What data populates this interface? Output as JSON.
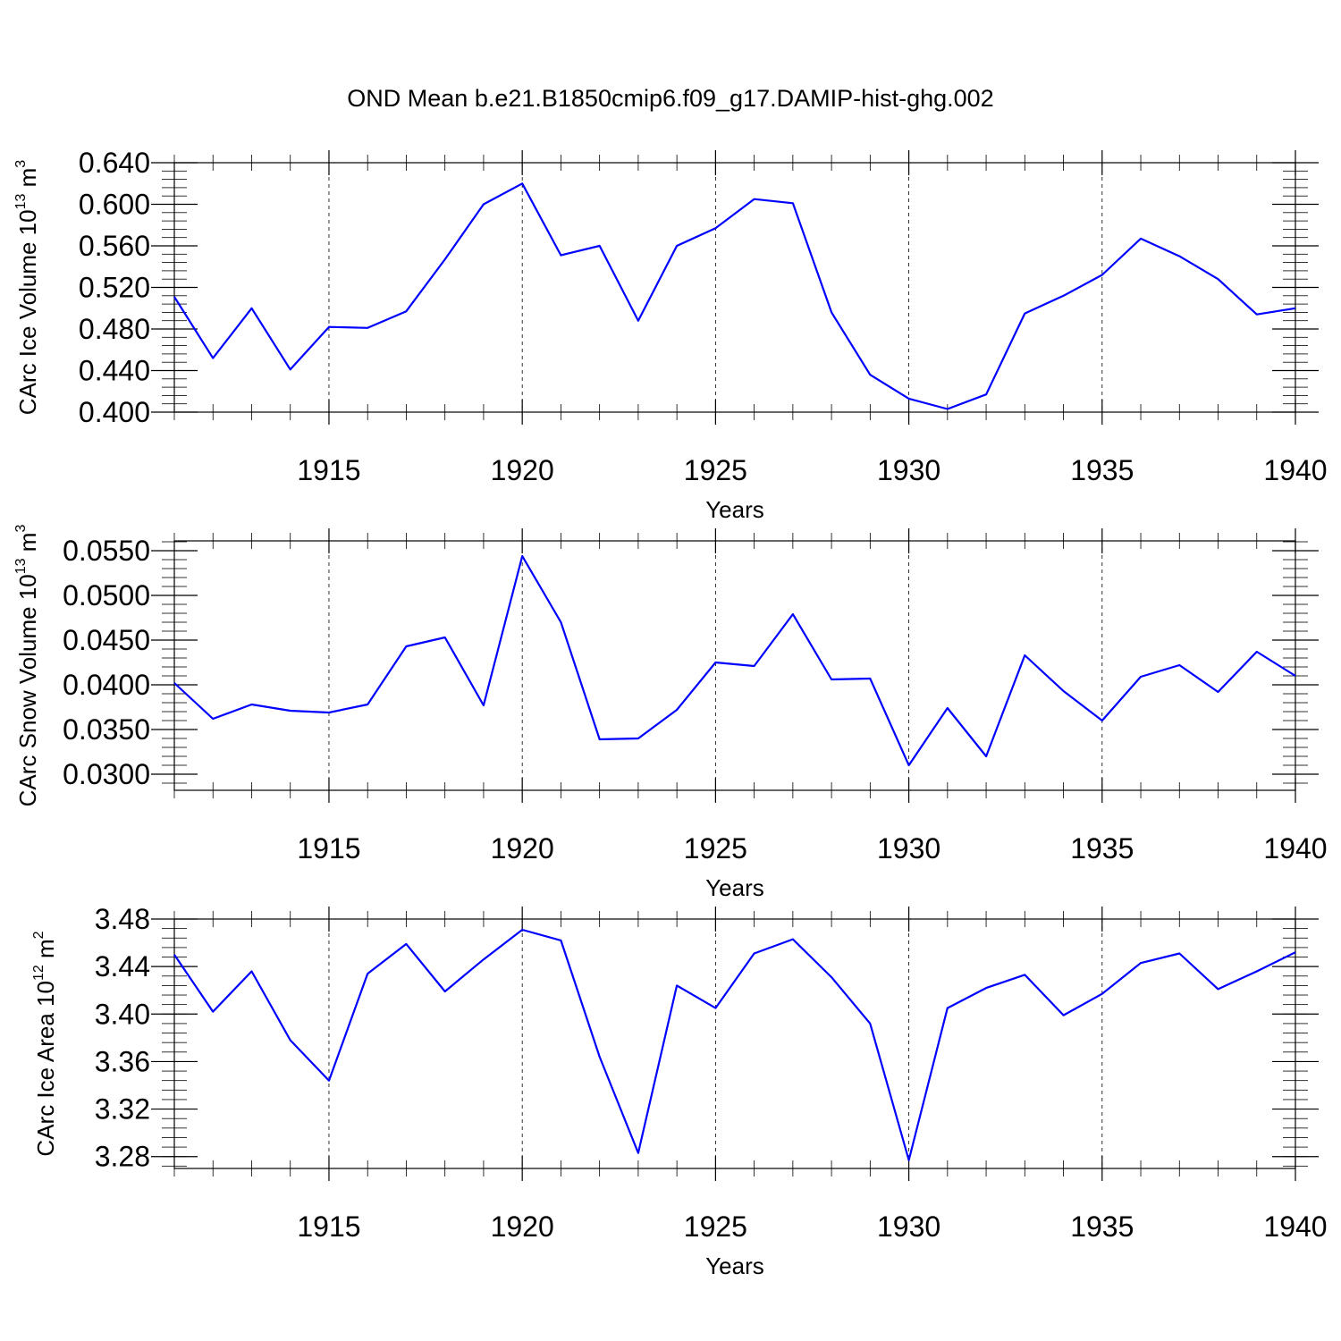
{
  "figure_title": "OND Mean b.e21.B1850cmip6.f09_g17.DAMIP-hist-ghg.002",
  "colors": {
    "line": "#0000ff",
    "axis": "#000000",
    "background": "#ffffff"
  },
  "chart_data": [
    {
      "type": "line",
      "ylabel_main": "CArc Ice Volume 10",
      "ylabel_sup": "13",
      "ylabel_unit": "m",
      "ylabel_unit_sup": "3",
      "xlabel": "Years",
      "xlim": [
        1911,
        1940
      ],
      "ylim": [
        0.4,
        0.64
      ],
      "yticks": [
        "0.400",
        "0.440",
        "0.480",
        "0.520",
        "0.560",
        "0.600",
        "0.640"
      ],
      "xticks": [
        "1915",
        "1920",
        "1925",
        "1930",
        "1935",
        "1940"
      ],
      "grid": "vertical dashed at major x ticks",
      "x": [
        1911,
        1912,
        1913,
        1914,
        1915,
        1916,
        1917,
        1918,
        1919,
        1920,
        1921,
        1922,
        1923,
        1924,
        1925,
        1926,
        1927,
        1928,
        1929,
        1930,
        1931,
        1932,
        1933,
        1934,
        1935,
        1936,
        1937,
        1938,
        1939,
        1940
      ],
      "values": [
        0.511,
        0.452,
        0.5,
        0.441,
        0.482,
        0.481,
        0.497,
        0.547,
        0.6,
        0.62,
        0.551,
        0.56,
        0.488,
        0.56,
        0.577,
        0.605,
        0.601,
        0.496,
        0.436,
        0.413,
        0.403,
        0.417,
        0.495,
        0.512,
        0.532,
        0.567,
        0.55,
        0.528,
        0.494,
        0.5
      ]
    },
    {
      "type": "line",
      "ylabel_main": "CArc Snow Volume 10",
      "ylabel_sup": "13",
      "ylabel_unit": "m",
      "ylabel_unit_sup": "3",
      "xlabel": "Years",
      "xlim": [
        1911,
        1940
      ],
      "ylim": [
        0.0282,
        0.0561
      ],
      "yticks": [
        "0.0300",
        "0.0350",
        "0.0400",
        "0.0450",
        "0.0500",
        "0.0550"
      ],
      "xticks": [
        "1915",
        "1920",
        "1925",
        "1930",
        "1935",
        "1940"
      ],
      "grid": "vertical dashed at major x ticks",
      "x": [
        1911,
        1912,
        1913,
        1914,
        1915,
        1916,
        1917,
        1918,
        1919,
        1920,
        1921,
        1922,
        1923,
        1924,
        1925,
        1926,
        1927,
        1928,
        1929,
        1930,
        1931,
        1932,
        1933,
        1934,
        1935,
        1936,
        1937,
        1938,
        1939,
        1940
      ],
      "values": [
        0.0402,
        0.0362,
        0.0378,
        0.0371,
        0.0369,
        0.0378,
        0.0443,
        0.0453,
        0.0377,
        0.0544,
        0.047,
        0.0339,
        0.034,
        0.0372,
        0.0425,
        0.0421,
        0.0479,
        0.0406,
        0.0407,
        0.031,
        0.0374,
        0.032,
        0.0433,
        0.0393,
        0.036,
        0.0409,
        0.0422,
        0.0392,
        0.0437,
        0.041
      ]
    },
    {
      "type": "line",
      "ylabel_main": "CArc Ice Area 10",
      "ylabel_sup": "12",
      "ylabel_unit": "m",
      "ylabel_unit_sup": "2",
      "xlabel": "Years",
      "xlim": [
        1911,
        1940
      ],
      "ylim": [
        3.27,
        3.48
      ],
      "yticks": [
        "3.28",
        "3.32",
        "3.36",
        "3.40",
        "3.44",
        "3.48"
      ],
      "xticks": [
        "1915",
        "1920",
        "1925",
        "1930",
        "1935",
        "1940"
      ],
      "grid": "vertical dashed at major x ticks",
      "x": [
        1911,
        1912,
        1913,
        1914,
        1915,
        1916,
        1917,
        1918,
        1919,
        1920,
        1921,
        1922,
        1923,
        1924,
        1925,
        1926,
        1927,
        1928,
        1929,
        1930,
        1931,
        1932,
        1933,
        1934,
        1935,
        1936,
        1937,
        1938,
        1939,
        1940
      ],
      "values": [
        3.45,
        3.402,
        3.436,
        3.378,
        3.344,
        3.434,
        3.459,
        3.419,
        3.446,
        3.471,
        3.462,
        3.364,
        3.283,
        3.424,
        3.405,
        3.451,
        3.463,
        3.431,
        3.392,
        3.277,
        3.405,
        3.422,
        3.433,
        3.399,
        3.417,
        3.443,
        3.451,
        3.421,
        3.436,
        3.452
      ]
    }
  ]
}
